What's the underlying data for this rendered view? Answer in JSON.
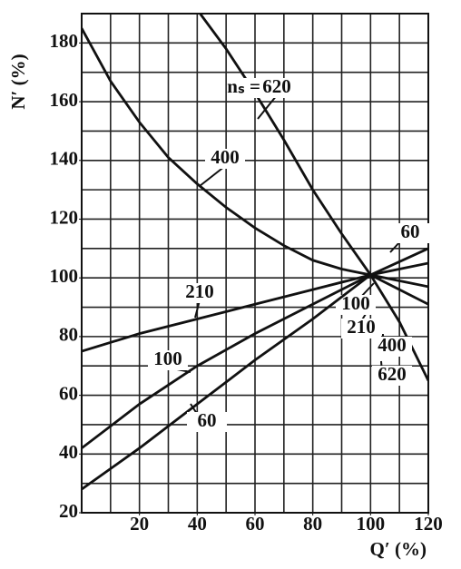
{
  "chart_data": {
    "type": "line",
    "x_label": "Q′ (%)",
    "y_label": "N′ (%)",
    "series_prefix": "nₛ =",
    "xlim": [
      0,
      120
    ],
    "ylim": [
      20,
      190
    ],
    "xticks": [
      20,
      40,
      60,
      80,
      100,
      120
    ],
    "yticks": [
      20,
      40,
      60,
      80,
      100,
      120,
      140,
      160,
      180
    ],
    "grid": true,
    "grid_step": 10,
    "color": "#111111",
    "series": [
      {
        "name": "620",
        "x": [
          41,
          50,
          60,
          70,
          80,
          90,
          100,
          110,
          120
        ],
        "values": [
          190,
          178,
          163,
          147,
          130,
          115,
          101,
          85,
          65
        ]
      },
      {
        "name": "400",
        "x": [
          0,
          10,
          20,
          30,
          40,
          50,
          60,
          70,
          80,
          90,
          100,
          110,
          120
        ],
        "values": [
          185,
          167,
          153,
          141,
          132,
          124,
          117,
          111,
          106,
          103,
          101,
          96,
          91
        ]
      },
      {
        "name": "210",
        "x": [
          0,
          20,
          40,
          60,
          80,
          100,
          120
        ],
        "values": [
          75,
          81,
          86,
          91,
          96,
          101,
          97
        ]
      },
      {
        "name": "100",
        "x": [
          0,
          20,
          40,
          60,
          80,
          100,
          120
        ],
        "values": [
          42,
          57,
          70,
          81,
          91,
          101,
          105
        ]
      },
      {
        "name": "60",
        "x": [
          0,
          20,
          40,
          60,
          80,
          100,
          120
        ],
        "values": [
          28,
          42,
          57,
          72,
          86,
          101,
          110
        ]
      }
    ]
  }
}
